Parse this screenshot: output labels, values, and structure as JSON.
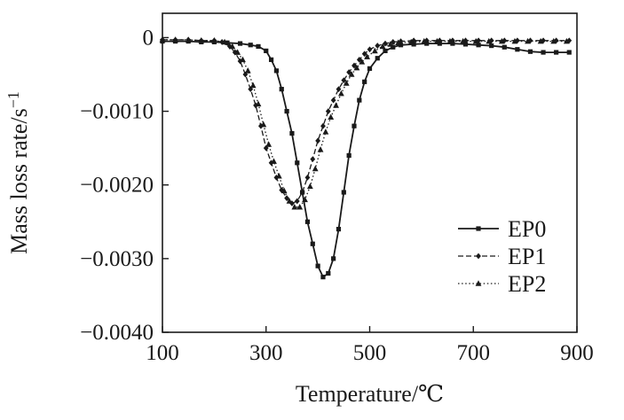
{
  "figure": {
    "background": "#ffffff",
    "ink_color": "#1a1a1a"
  },
  "chart_data": {
    "type": "line",
    "title": "",
    "xlabel": "Temperature/℃",
    "ylabel": "Mass loss rate/s⁻¹",
    "xlim": [
      100,
      900
    ],
    "ylim": [
      -0.004,
      0.00033
    ],
    "grid": false,
    "legend_position": "right-middle",
    "x_ticks": {
      "values": [
        100,
        300,
        500,
        700,
        900
      ],
      "labels": [
        "100",
        "300",
        "500",
        "700",
        "900"
      ]
    },
    "y_ticks": {
      "values": [
        0,
        -0.001,
        -0.002,
        -0.003,
        -0.004
      ],
      "labels": [
        "0",
        "−0.0010",
        "−0.0020",
        "−0.0030",
        "−0.0040"
      ]
    },
    "series": [
      {
        "name": "EP0",
        "marker": "square",
        "line": "solid",
        "points": [
          [
            100,
            -5e-05
          ],
          [
            125,
            -5e-05
          ],
          [
            150,
            -5e-05
          ],
          [
            175,
            -6e-05
          ],
          [
            200,
            -6e-05
          ],
          [
            225,
            -7e-05
          ],
          [
            250,
            -8e-05
          ],
          [
            270,
            -0.0001
          ],
          [
            285,
            -0.00012
          ],
          [
            300,
            -0.00018
          ],
          [
            310,
            -0.0003
          ],
          [
            320,
            -0.00045
          ],
          [
            330,
            -0.0007
          ],
          [
            340,
            -0.001
          ],
          [
            350,
            -0.0013
          ],
          [
            360,
            -0.0017
          ],
          [
            370,
            -0.0021
          ],
          [
            380,
            -0.0025
          ],
          [
            390,
            -0.0028
          ],
          [
            400,
            -0.0031
          ],
          [
            410,
            -0.00325
          ],
          [
            420,
            -0.0032
          ],
          [
            430,
            -0.003
          ],
          [
            440,
            -0.0026
          ],
          [
            450,
            -0.0021
          ],
          [
            460,
            -0.0016
          ],
          [
            470,
            -0.0012
          ],
          [
            480,
            -0.00085
          ],
          [
            490,
            -0.0006
          ],
          [
            500,
            -0.00042
          ],
          [
            515,
            -0.00028
          ],
          [
            530,
            -0.00018
          ],
          [
            545,
            -0.00013
          ],
          [
            560,
            -0.0001
          ],
          [
            585,
            -9e-05
          ],
          [
            610,
            -8e-05
          ],
          [
            635,
            -8e-05
          ],
          [
            660,
            -8e-05
          ],
          [
            685,
            -9e-05
          ],
          [
            710,
            -0.0001
          ],
          [
            735,
            -0.00011
          ],
          [
            760,
            -0.00013
          ],
          [
            785,
            -0.00016
          ],
          [
            810,
            -0.00019
          ],
          [
            835,
            -0.0002
          ],
          [
            860,
            -0.0002
          ],
          [
            885,
            -0.0002
          ]
        ]
      },
      {
        "name": "EP1",
        "marker": "diamond",
        "line": "dash",
        "points": [
          [
            100,
            -3e-05
          ],
          [
            125,
            -3e-05
          ],
          [
            150,
            -3e-05
          ],
          [
            175,
            -4e-05
          ],
          [
            200,
            -4e-05
          ],
          [
            215,
            -6e-05
          ],
          [
            230,
            -0.00012
          ],
          [
            240,
            -0.0002
          ],
          [
            250,
            -0.00032
          ],
          [
            260,
            -0.0005
          ],
          [
            270,
            -0.0007
          ],
          [
            280,
            -0.00092
          ],
          [
            290,
            -0.0012
          ],
          [
            300,
            -0.0015
          ],
          [
            310,
            -0.0017
          ],
          [
            320,
            -0.0019
          ],
          [
            330,
            -0.00207
          ],
          [
            340,
            -0.00218
          ],
          [
            350,
            -0.00225
          ],
          [
            360,
            -0.00222
          ],
          [
            370,
            -0.0021
          ],
          [
            380,
            -0.0019
          ],
          [
            390,
            -0.00165
          ],
          [
            400,
            -0.0014
          ],
          [
            410,
            -0.0012
          ],
          [
            420,
            -0.001
          ],
          [
            430,
            -0.00085
          ],
          [
            440,
            -0.0007
          ],
          [
            450,
            -0.00058
          ],
          [
            460,
            -0.00047
          ],
          [
            470,
            -0.00038
          ],
          [
            480,
            -0.0003
          ],
          [
            490,
            -0.00022
          ],
          [
            500,
            -0.00016
          ],
          [
            515,
            -0.00011
          ],
          [
            530,
            -8e-05
          ],
          [
            545,
            -6e-05
          ],
          [
            560,
            -5e-05
          ],
          [
            585,
            -4e-05
          ],
          [
            610,
            -4e-05
          ],
          [
            635,
            -4e-05
          ],
          [
            660,
            -4e-05
          ],
          [
            685,
            -4e-05
          ],
          [
            710,
            -4e-05
          ],
          [
            735,
            -4e-05
          ],
          [
            760,
            -4e-05
          ],
          [
            785,
            -4e-05
          ],
          [
            810,
            -4e-05
          ],
          [
            835,
            -4e-05
          ],
          [
            860,
            -4e-05
          ],
          [
            885,
            -4e-05
          ]
        ]
      },
      {
        "name": "EP2",
        "marker": "triangle",
        "line": "dot",
        "points": [
          [
            100,
            -3e-05
          ],
          [
            125,
            -3e-05
          ],
          [
            150,
            -3e-05
          ],
          [
            175,
            -4e-05
          ],
          [
            200,
            -4e-05
          ],
          [
            220,
            -6e-05
          ],
          [
            235,
            -0.00012
          ],
          [
            245,
            -0.0002
          ],
          [
            255,
            -0.0003
          ],
          [
            265,
            -0.00045
          ],
          [
            275,
            -0.00065
          ],
          [
            285,
            -0.0009
          ],
          [
            295,
            -0.00118
          ],
          [
            305,
            -0.00145
          ],
          [
            315,
            -0.00168
          ],
          [
            325,
            -0.00188
          ],
          [
            335,
            -0.00208
          ],
          [
            345,
            -0.00222
          ],
          [
            355,
            -0.0023
          ],
          [
            365,
            -0.0023
          ],
          [
            375,
            -0.0022
          ],
          [
            385,
            -0.00202
          ],
          [
            395,
            -0.00178
          ],
          [
            405,
            -0.00152
          ],
          [
            415,
            -0.00128
          ],
          [
            425,
            -0.00108
          ],
          [
            435,
            -0.00092
          ],
          [
            445,
            -0.00076
          ],
          [
            455,
            -0.00062
          ],
          [
            465,
            -0.0005
          ],
          [
            475,
            -0.00041
          ],
          [
            485,
            -0.00033
          ],
          [
            495,
            -0.00026
          ],
          [
            510,
            -0.00018
          ],
          [
            525,
            -0.00012
          ],
          [
            540,
            -9e-05
          ],
          [
            555,
            -7e-05
          ],
          [
            580,
            -6e-05
          ],
          [
            605,
            -5e-05
          ],
          [
            630,
            -5e-05
          ],
          [
            655,
            -5e-05
          ],
          [
            680,
            -5e-05
          ],
          [
            705,
            -5e-05
          ],
          [
            730,
            -5e-05
          ],
          [
            755,
            -5e-05
          ],
          [
            780,
            -5e-05
          ],
          [
            805,
            -5e-05
          ],
          [
            830,
            -5e-05
          ],
          [
            855,
            -5e-05
          ],
          [
            880,
            -5e-05
          ]
        ]
      }
    ]
  }
}
